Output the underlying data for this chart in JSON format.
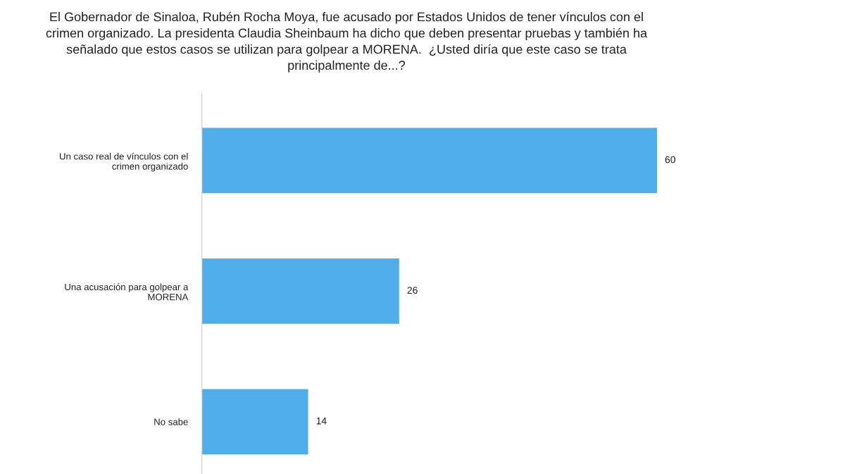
{
  "chart_data": {
    "type": "bar",
    "orientation": "horizontal",
    "title": "El Gobernador de Sinaloa, Rubén Rocha Moya, fue acusado por Estados Unidos de tener vínculos con el\ncrimen organizado. La presidenta Claudia Sheinbaum ha dicho que deben presentar pruebas y también ha\nseñalado que estos casos se utilizan para golpear a MORENA.  ¿Usted diría que este caso se trata\nprincipalmente de...?",
    "categories": [
      "Un caso real de vínculos con el\ncrimen organizado",
      "Una acusación para golpear a\nMORENA",
      "No sabe"
    ],
    "values": [
      60,
      26,
      14
    ],
    "color": "#4faeea",
    "data_labels": true,
    "tick_labels": "y",
    "grid": false
  }
}
